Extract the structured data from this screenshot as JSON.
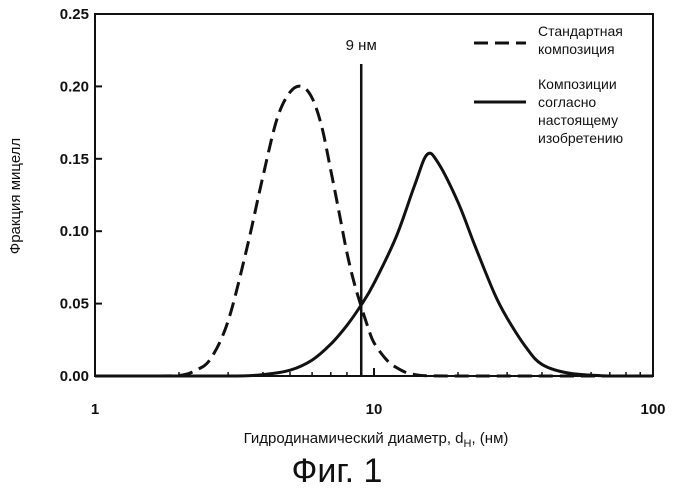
{
  "chart_data": {
    "type": "line",
    "xscale": "log",
    "xlim": [
      1,
      100
    ],
    "ylim": [
      0,
      0.25
    ],
    "xticks": [
      1,
      10,
      100
    ],
    "xtick_labels": [
      "1",
      "10",
      "100"
    ],
    "yticks": [
      0,
      0.05,
      0.1,
      0.15,
      0.2,
      0.25
    ],
    "ytick_labels": [
      "0.00",
      "0.05",
      "0.10",
      "0.15",
      "0.20",
      "0.25"
    ],
    "xlabel": "Гидродинамический диаметр, d",
    "xlabel_sub": "H",
    "xlabel_suffix": ", (нм)",
    "ylabel": "Фракция мицелл",
    "grid": false,
    "legend_position": "top-right",
    "annotation": {
      "x": 9,
      "label": "9 нм"
    },
    "series": [
      {
        "name": [
          "Стандартная",
          "композиция"
        ],
        "style": "dashed",
        "x": [
          1,
          1.5,
          2,
          2.3,
          2.6,
          3,
          3.5,
          4,
          4.5,
          5,
          5.5,
          6,
          6.5,
          7,
          7.5,
          8,
          8.5,
          9,
          9.5,
          10,
          11,
          12,
          14,
          20,
          100
        ],
        "y": [
          0,
          0,
          0.0003,
          0.004,
          0.012,
          0.038,
          0.088,
          0.138,
          0.178,
          0.196,
          0.2,
          0.192,
          0.172,
          0.142,
          0.113,
          0.085,
          0.064,
          0.048,
          0.034,
          0.023,
          0.012,
          0.006,
          0.001,
          0,
          0
        ]
      },
      {
        "name": [
          "Композиции",
          "согласно",
          "настоящему",
          "изобретению"
        ],
        "style": "solid",
        "x": [
          1,
          3,
          4,
          5,
          6,
          7,
          8,
          9,
          10,
          12,
          14,
          15.5,
          17,
          20,
          23,
          27,
          30,
          35,
          40,
          50,
          70,
          100
        ],
        "y": [
          0,
          0,
          0.001,
          0.004,
          0.011,
          0.022,
          0.035,
          0.049,
          0.064,
          0.096,
          0.132,
          0.153,
          0.147,
          0.12,
          0.09,
          0.057,
          0.04,
          0.02,
          0.008,
          0.002,
          0,
          0
        ]
      }
    ]
  },
  "caption": "Фиг. 1"
}
